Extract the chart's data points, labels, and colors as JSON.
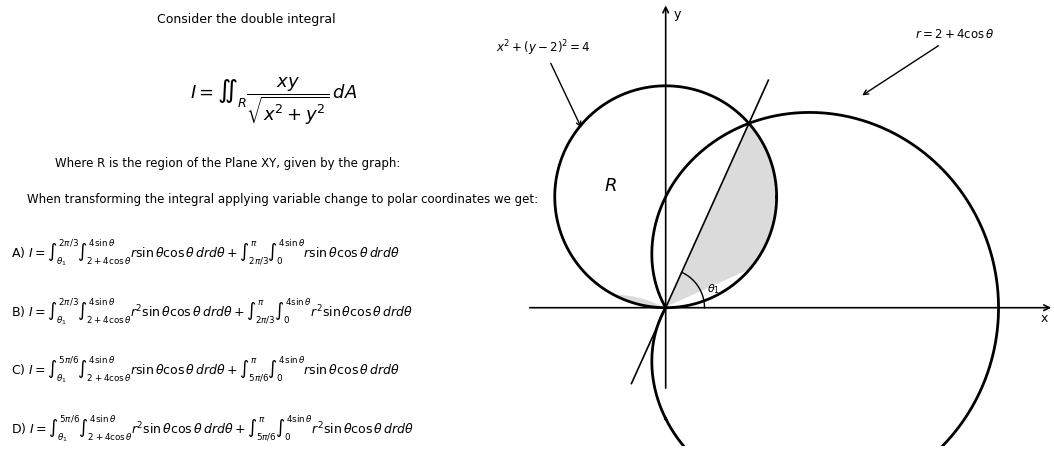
{
  "title": "Consider the double integral",
  "main_integral": "I = \\iint_{R} \\dfrac{xy}{\\sqrt{x^2 + y^2}}\\, dA",
  "description1": "Where R is the region of the Plane XY, given by the graph:",
  "description2": "When transforming the integral applying variable change to polar coordinates we get:",
  "optionA": "A)\\; I = \\int_{\\theta_1}^{2\\pi/3}\\int_{2+4\\cos\\theta}^{4\\sin\\theta} r\\sin\\theta\\cos\\theta\\, drd\\theta + \\int_{2\\pi/3}^{\\pi}\\int_{0}^{4\\sin\\theta} r\\sin\\theta\\cos\\theta\\, drd\\theta",
  "optionB": "B)\\; I = \\int_{\\theta_1}^{2\\pi/3}\\int_{2+4\\cos\\theta}^{4\\sin\\theta} r^2\\sin\\theta\\cos\\theta\\, drd\\theta + \\int_{2\\pi/3}^{\\pi}\\int_{0}^{4\\sin\\theta} r^2\\sin\\theta\\cos\\theta\\, drd\\theta",
  "optionC": "C)\\; I = \\int_{\\theta_1}^{5\\pi/6}\\int_{2+4\\cos\\theta}^{4\\sin\\theta} r\\sin\\theta\\cos\\theta\\, drd\\theta + \\int_{5\\pi/6}^{\\pi}\\int_{0}^{4\\sin\\theta} r\\sin\\theta\\cos\\theta\\, drd\\theta",
  "optionD": "D)\\; I = \\int_{\\theta_1}^{5\\pi/6}\\int_{2+4\\cos\\theta}^{4\\sin\\theta} r^2\\sin\\theta\\cos\\theta\\, drd\\theta + \\int_{5\\pi/6}^{\\pi}\\int_{0}^{4\\sin\\theta} r^2\\sin\\theta\\cos\\theta\\, drd\\theta",
  "circle1_label": "$x^2 + (y-2)^2 = 4$",
  "circle2_label": "$r = 2 + 4\\cos\\theta$",
  "region_label": "$R$",
  "theta1_label": "$\\theta_1$",
  "bg_color": "#ffffff",
  "text_color": "#000000",
  "gray_fill": "#cccccc",
  "diagram_xlim": [
    -2.5,
    7
  ],
  "diagram_ylim": [
    -2.5,
    5.5
  ]
}
